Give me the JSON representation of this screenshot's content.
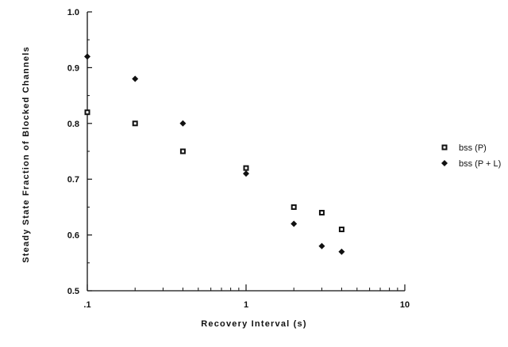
{
  "chart_data": {
    "type": "scatter",
    "title": "",
    "xlabel": "Recovery  Interval  (s)",
    "ylabel": "Steady  State  Fraction  of  Blocked  Channels",
    "x_scale": "log",
    "xlim": [
      0.1,
      10
    ],
    "ylim": [
      0.5,
      1.0
    ],
    "x_ticks": [
      {
        "value": 0.1,
        "label": ".1"
      },
      {
        "value": 1,
        "label": "1"
      },
      {
        "value": 10,
        "label": "10"
      }
    ],
    "y_ticks": [
      {
        "value": 0.5,
        "label": "0.5"
      },
      {
        "value": 0.6,
        "label": "0.6"
      },
      {
        "value": 0.7,
        "label": "0.7"
      },
      {
        "value": 0.8,
        "label": "0.8"
      },
      {
        "value": 0.9,
        "label": "0.9"
      },
      {
        "value": 1.0,
        "label": "1.0"
      }
    ],
    "grid": false,
    "legend_position": "right",
    "series": [
      {
        "name": "bss (P)",
        "marker": "square",
        "color": "#111111",
        "x": [
          0.1,
          0.2,
          0.4,
          1,
          2,
          3,
          4
        ],
        "y": [
          0.82,
          0.8,
          0.75,
          0.72,
          0.65,
          0.64,
          0.61
        ]
      },
      {
        "name": "bss (P + L)",
        "marker": "diamond",
        "color": "#111111",
        "x": [
          0.1,
          0.2,
          0.4,
          1,
          2,
          3,
          4
        ],
        "y": [
          0.92,
          0.88,
          0.8,
          0.71,
          0.62,
          0.58,
          0.57
        ]
      }
    ]
  }
}
